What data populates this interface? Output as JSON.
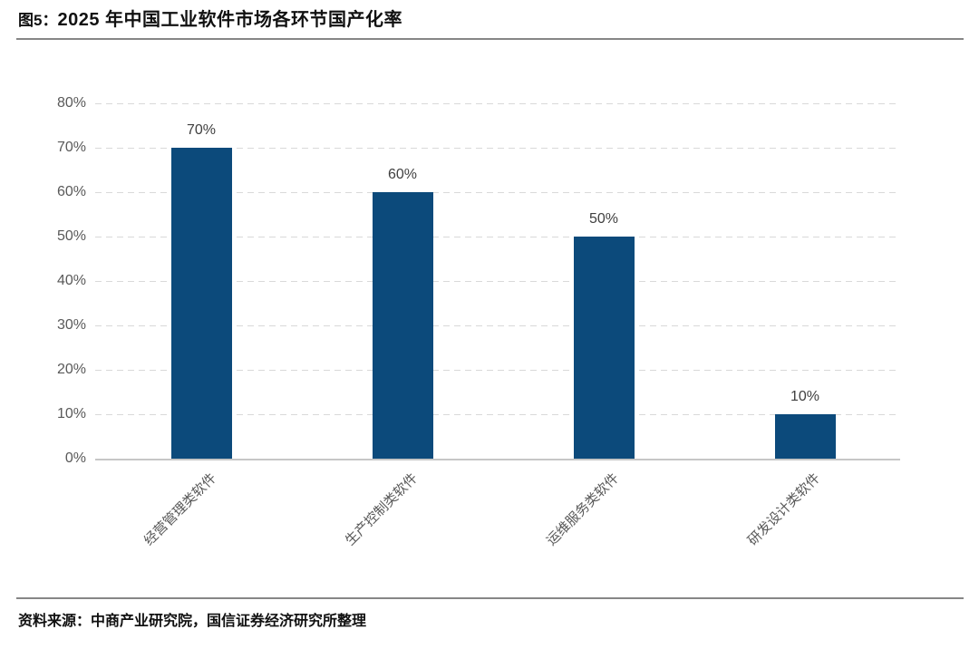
{
  "figure": {
    "label": "图5：",
    "title": "2025 年中国工业软件市场各环节国产化率",
    "source": "资料来源：中商产业研究院，国信证券经济研究所整理"
  },
  "chart_data": {
    "type": "bar",
    "title": "2025 年中国工业软件市场各环节国产化率",
    "categories": [
      "经营管理类软件",
      "生产控制类软件",
      "运维服务类软件",
      "研发设计类软件"
    ],
    "values": [
      70,
      60,
      50,
      10
    ],
    "value_labels": [
      "70%",
      "60%",
      "50%",
      "10%"
    ],
    "ylim": [
      0,
      80
    ],
    "ytick_step": 10,
    "ytick_labels": [
      "0%",
      "10%",
      "20%",
      "30%",
      "40%",
      "50%",
      "60%",
      "70%",
      "80%"
    ],
    "grid": "horizontal-dashed",
    "legend": "none",
    "xlabel": "",
    "ylabel": "",
    "colors": {
      "bar": "#0c4a7b",
      "gridline": "#d9d9d9",
      "axis_line": "#c6c6c6",
      "tick_text": "#595959",
      "value_text": "#3f3f3f",
      "category_text": "#595959"
    }
  }
}
